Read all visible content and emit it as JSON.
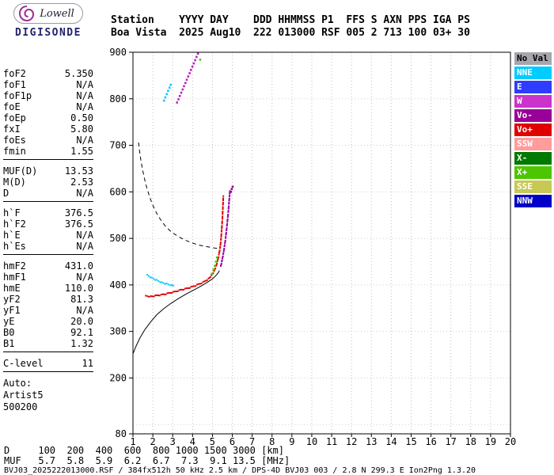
{
  "logo": {
    "top": "Lowell",
    "bottom": "DIGISONDE"
  },
  "header": {
    "line1": "Station    YYYY DAY    DDD HHMMSS P1  FFS S AXN PPS IGA PS",
    "line2": "Boa Vista  2025 Aug10  222 013000 RSF 005 2 713 100 03+ 30"
  },
  "params": {
    "groups": [
      {
        "rows": [
          [
            "foF2",
            "5.350"
          ],
          [
            "foF1",
            "N/A"
          ],
          [
            "foF1p",
            "N/A"
          ],
          [
            "foE",
            "N/A"
          ],
          [
            "foEp",
            "0.50"
          ],
          [
            "fxI",
            "5.80"
          ],
          [
            "foEs",
            "N/A"
          ],
          [
            "fmin",
            "1.55"
          ]
        ]
      },
      {
        "rows": [
          [
            "MUF(D)",
            "13.53"
          ],
          [
            "M(D)",
            "2.53"
          ],
          [
            "D",
            "N/A"
          ]
        ]
      },
      {
        "rows": [
          [
            "h`F",
            "376.5"
          ],
          [
            "h`F2",
            "376.5"
          ],
          [
            "h`E",
            "N/A"
          ],
          [
            "h`Es",
            "N/A"
          ]
        ]
      },
      {
        "rows": [
          [
            "hmF2",
            "431.0"
          ],
          [
            "hmF1",
            "N/A"
          ],
          [
            "hmE",
            "110.0"
          ],
          [
            "yF2",
            "81.3"
          ],
          [
            "yF1",
            "N/A"
          ],
          [
            "yE",
            "20.0"
          ],
          [
            "B0",
            "92.1"
          ],
          [
            "B1",
            "1.32"
          ]
        ]
      },
      {
        "rows": [
          [
            "C-level",
            "11"
          ]
        ]
      }
    ],
    "footer_lines": [
      "Auto:",
      "Artist5",
      "500200"
    ]
  },
  "legend": {
    "items": [
      {
        "label": "No Val",
        "color": "#A6A6AE",
        "text": "#000000"
      },
      {
        "label": "NNE",
        "color": "#00CCFF",
        "text": "#FFFFFF"
      },
      {
        "label": "E",
        "color": "#2E3CFF",
        "text": "#FFFFFF"
      },
      {
        "label": "W",
        "color": "#CC33CC",
        "text": "#FFFFFF"
      },
      {
        "label": "Vo-",
        "color": "#990099",
        "text": "#FFFFFF"
      },
      {
        "label": "Vo+",
        "color": "#E00000",
        "text": "#FFFFFF"
      },
      {
        "label": "SSW",
        "color": "#FF9C9C",
        "text": "#FFFFFF"
      },
      {
        "label": "X-",
        "color": "#007A00",
        "text": "#FFFFFF"
      },
      {
        "label": "X+",
        "color": "#4CC600",
        "text": "#FFFFFF"
      },
      {
        "label": "SSE",
        "color": "#C8C855",
        "text": "#FFFFFF"
      },
      {
        "label": "NNW",
        "color": "#0000C8",
        "text": "#FFFFFF"
      }
    ]
  },
  "chart_data": {
    "type": "scatter",
    "x_unit": "MHz",
    "y_unit": "km",
    "xlim": [
      1,
      20
    ],
    "ylim": [
      80,
      900
    ],
    "x_ticks": [
      1,
      2,
      3,
      4,
      5,
      6,
      7,
      8,
      9,
      10,
      11,
      12,
      13,
      14,
      15,
      16,
      17,
      18,
      19,
      20
    ],
    "y_tick_labels": [
      900,
      800,
      700,
      600,
      500,
      400,
      300,
      200,
      80
    ],
    "grid": true,
    "traces": [
      {
        "name": "f-trace-o-mode",
        "color": "#E00000",
        "style": "dotted-line",
        "points": [
          [
            1.65,
            376
          ],
          [
            1.9,
            375
          ],
          [
            2.2,
            377
          ],
          [
            2.5,
            379
          ],
          [
            2.8,
            382
          ],
          [
            3.1,
            385
          ],
          [
            3.4,
            389
          ],
          [
            3.7,
            392
          ],
          [
            4.0,
            396
          ],
          [
            4.3,
            401
          ],
          [
            4.6,
            407
          ],
          [
            4.8,
            413
          ],
          [
            4.95,
            420
          ],
          [
            5.08,
            429
          ],
          [
            5.18,
            440
          ],
          [
            5.27,
            453
          ],
          [
            5.34,
            468
          ],
          [
            5.4,
            485
          ],
          [
            5.44,
            503
          ],
          [
            5.47,
            521
          ],
          [
            5.5,
            541
          ],
          [
            5.52,
            562
          ],
          [
            5.54,
            581
          ],
          [
            5.55,
            593
          ]
        ]
      },
      {
        "name": "f-trace-x-mode",
        "color": "#990099",
        "style": "dotted-line",
        "points": [
          [
            5.42,
            440
          ],
          [
            5.5,
            456
          ],
          [
            5.57,
            472
          ],
          [
            5.63,
            489
          ],
          [
            5.68,
            507
          ],
          [
            5.73,
            526
          ],
          [
            5.77,
            545
          ],
          [
            5.81,
            563
          ],
          [
            5.84,
            580
          ],
          [
            5.87,
            596
          ],
          [
            5.89,
            606
          ]
        ]
      },
      {
        "name": "f-trace-oblique-cyan",
        "color": "#00CCFF",
        "style": "dotted-line",
        "points": [
          [
            1.72,
            421
          ],
          [
            1.95,
            415
          ],
          [
            2.2,
            410
          ],
          [
            2.45,
            405
          ],
          [
            2.7,
            402
          ],
          [
            2.95,
            399
          ],
          [
            3.1,
            398
          ]
        ]
      },
      {
        "name": "second-hop-w",
        "color": "#BB22BB",
        "style": "scatter",
        "points": [
          [
            3.22,
            792
          ],
          [
            3.29,
            799
          ],
          [
            3.36,
            806
          ],
          [
            3.43,
            813
          ],
          [
            3.5,
            820
          ],
          [
            3.57,
            827
          ],
          [
            3.64,
            834
          ],
          [
            3.71,
            841
          ],
          [
            3.78,
            848
          ],
          [
            3.85,
            855
          ],
          [
            3.92,
            862
          ],
          [
            3.99,
            869
          ],
          [
            4.06,
            876
          ],
          [
            4.13,
            883
          ],
          [
            4.2,
            890
          ],
          [
            4.27,
            897
          ]
        ]
      },
      {
        "name": "second-hop-nne",
        "color": "#00CCFF",
        "style": "scatter",
        "points": [
          [
            2.56,
            796
          ],
          [
            2.63,
            803
          ],
          [
            2.7,
            810
          ],
          [
            2.77,
            817
          ],
          [
            2.84,
            824
          ],
          [
            2.9,
            830
          ]
        ]
      },
      {
        "name": "x-plus-points",
        "color": "#4CC600",
        "style": "scatter",
        "points": [
          [
            4.97,
            424
          ],
          [
            5.05,
            433
          ],
          [
            5.12,
            441
          ],
          [
            5.18,
            450
          ],
          [
            5.23,
            459
          ],
          [
            4.38,
            884
          ]
        ]
      },
      {
        "name": "x-mode-tip",
        "color": "#990099",
        "style": "scatter",
        "points": [
          [
            5.93,
            600
          ],
          [
            5.97,
            606
          ],
          [
            6.02,
            611
          ]
        ]
      }
    ],
    "curves": [
      {
        "name": "true-height-profile",
        "style": "solid",
        "points": [
          [
            1.0,
            252
          ],
          [
            1.15,
            268
          ],
          [
            1.35,
            286
          ],
          [
            1.6,
            304
          ],
          [
            1.9,
            321
          ],
          [
            2.2,
            336
          ],
          [
            2.55,
            349
          ],
          [
            2.9,
            360
          ],
          [
            3.3,
            371
          ],
          [
            3.7,
            381
          ],
          [
            4.1,
            390
          ],
          [
            4.45,
            398
          ],
          [
            4.75,
            406
          ],
          [
            5.0,
            413
          ],
          [
            5.15,
            419
          ],
          [
            5.25,
            424
          ],
          [
            5.32,
            428
          ],
          [
            5.35,
            431
          ]
        ]
      },
      {
        "name": "muf-transmission-curve",
        "style": "dashed",
        "points": [
          [
            1.28,
            706
          ],
          [
            1.33,
            688
          ],
          [
            1.4,
            668
          ],
          [
            1.48,
            648
          ],
          [
            1.58,
            628
          ],
          [
            1.7,
            608
          ],
          [
            1.84,
            589
          ],
          [
            2.0,
            571
          ],
          [
            2.18,
            555
          ],
          [
            2.38,
            541
          ],
          [
            2.6,
            528
          ],
          [
            2.85,
            517
          ],
          [
            3.1,
            509
          ],
          [
            3.4,
            501
          ],
          [
            3.7,
            495
          ],
          [
            4.0,
            490
          ],
          [
            4.3,
            486
          ],
          [
            4.6,
            483
          ],
          [
            4.9,
            481
          ],
          [
            5.15,
            479
          ],
          [
            5.35,
            478
          ]
        ]
      }
    ]
  },
  "distance_muf": {
    "d_label": "D",
    "d_values": [
      "100",
      "200",
      "400",
      "600",
      "800",
      "1000",
      "1500",
      "3000"
    ],
    "d_unit": "[km]",
    "muf_label": "MUF",
    "muf_values": [
      "5.7",
      "5.8",
      "5.9",
      "6.2",
      "6.7",
      "7.3",
      "9.1",
      "13.5"
    ],
    "muf_unit": "[MHz]"
  },
  "status_line": "BVJ03_2025222013000.RSF / 384fx512h 50 kHz 2.5 km / DPS-4D BVJ03 003 / 2.8 N 299.3 E Ion2Png 1.3.20"
}
